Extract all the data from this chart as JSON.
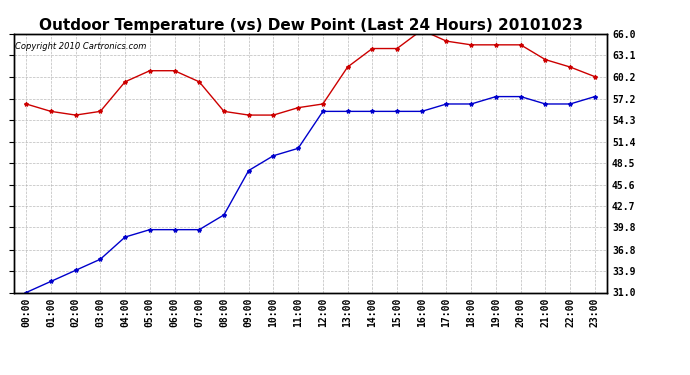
{
  "title": "Outdoor Temperature (vs) Dew Point (Last 24 Hours) 20101023",
  "copyright": "Copyright 2010 Cartronics.com",
  "x_labels": [
    "00:00",
    "01:00",
    "02:00",
    "03:00",
    "04:00",
    "05:00",
    "06:00",
    "07:00",
    "08:00",
    "09:00",
    "10:00",
    "11:00",
    "12:00",
    "13:00",
    "14:00",
    "15:00",
    "16:00",
    "17:00",
    "18:00",
    "19:00",
    "20:00",
    "21:00",
    "22:00",
    "23:00"
  ],
  "temp_data": [
    56.5,
    55.5,
    55.0,
    55.5,
    59.5,
    61.0,
    61.0,
    59.5,
    55.5,
    55.0,
    55.0,
    56.0,
    56.5,
    61.5,
    64.0,
    64.0,
    66.5,
    65.0,
    64.5,
    64.5,
    64.5,
    62.5,
    61.5,
    60.2
  ],
  "dew_data": [
    31.0,
    32.5,
    34.0,
    35.5,
    38.5,
    39.5,
    39.5,
    39.5,
    41.5,
    47.5,
    49.5,
    50.5,
    55.5,
    55.5,
    55.5,
    55.5,
    55.5,
    56.5,
    56.5,
    57.5,
    57.5,
    56.5,
    56.5,
    57.5
  ],
  "temp_color": "#cc0000",
  "dew_color": "#0000cc",
  "marker": "*",
  "marker_size": 3,
  "y_ticks": [
    31.0,
    33.9,
    36.8,
    39.8,
    42.7,
    45.6,
    48.5,
    51.4,
    54.3,
    57.2,
    60.2,
    63.1,
    66.0
  ],
  "ylim": [
    31.0,
    66.0
  ],
  "bg_color": "#ffffff",
  "grid_color": "#aaaaaa",
  "title_fontsize": 11,
  "tick_fontsize": 7,
  "copyright_fontsize": 6
}
